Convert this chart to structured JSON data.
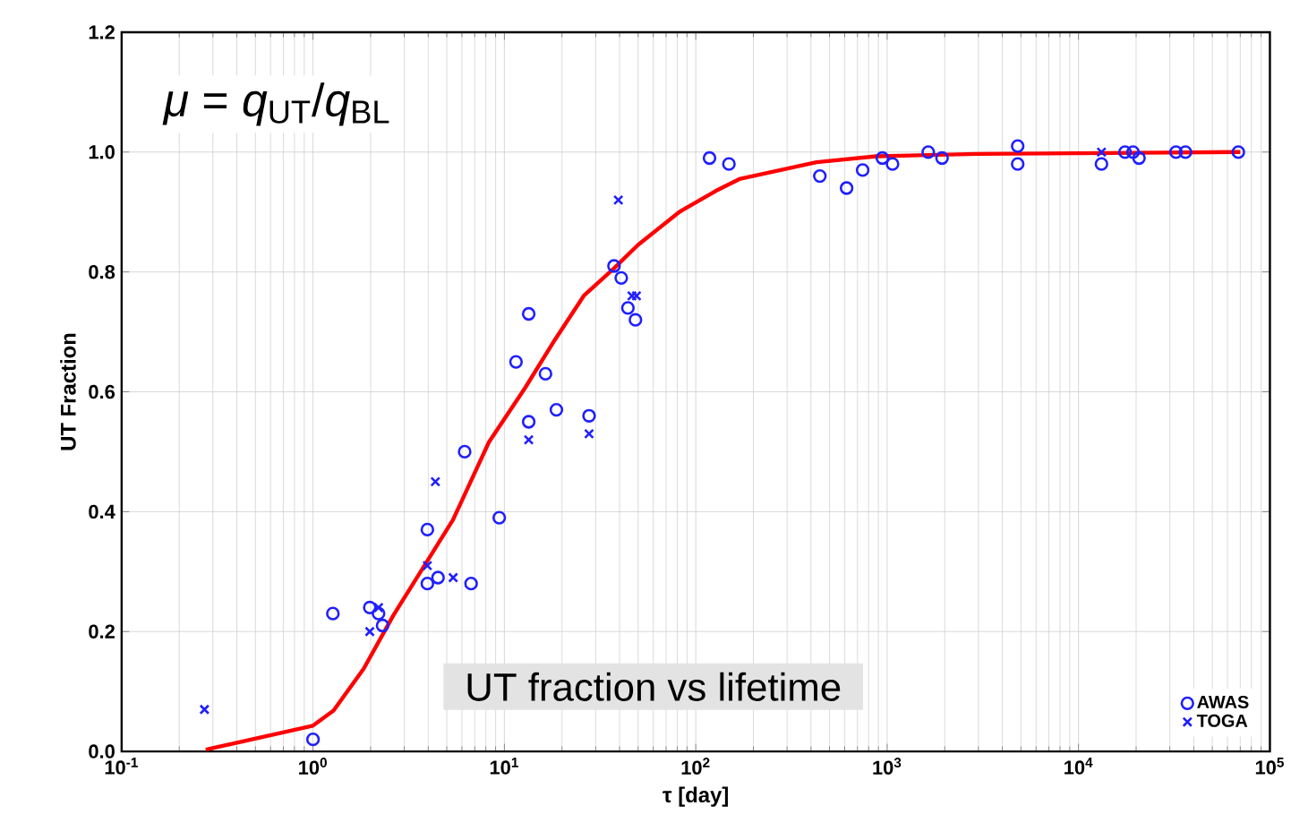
{
  "chart_data": {
    "type": "scatter",
    "xlabel": "τ [day]",
    "ylabel": "UT Fraction",
    "annotations": [
      "*μ* = *q*$_{UT}$/*q*$_{BL}$",
      "UT fraction vs lifetime"
    ],
    "log": "x",
    "grid": true,
    "legend": "bottom right",
    "xlim": [
      0.1,
      100000
    ],
    "ylim": [
      0,
      1.2
    ],
    "xticks": [
      {
        "value": 0.1,
        "label": "10$^{-1}$"
      },
      {
        "value": 1,
        "label": "10$^{0}$"
      },
      {
        "value": 10,
        "label": "10$^{1}$"
      },
      {
        "value": 100,
        "label": "10$^{2}$"
      },
      {
        "value": 1000,
        "label": "10$^{3}$"
      },
      {
        "value": 10000,
        "label": "10$^{4}$"
      },
      {
        "value": 100000,
        "label": "10$^{5}$"
      }
    ],
    "yticks": [
      {
        "value": 0,
        "label": "0.0"
      },
      {
        "value": 0.2,
        "label": "0.2"
      },
      {
        "value": 0.4,
        "label": "0.4"
      },
      {
        "value": 0.6,
        "label": "0.6"
      },
      {
        "value": 0.8,
        "label": "0.8"
      },
      {
        "value": 1,
        "label": "1.0"
      },
      {
        "value": 1.2,
        "label": "1.2"
      }
    ],
    "series": [
      {
        "type": "line",
        "color": "#ff0000",
        "marker": "none",
        "line_style": "solid",
        "x": [
          0.275,
          1.0,
          1.28,
          1.84,
          2.63,
          3.77,
          5.4,
          8.3,
          12.8,
          18.3,
          26.1,
          37.4,
          49.9,
          82,
          127,
          169,
          428,
          877,
          2970,
          70000
        ],
        "values": [
          0.003,
          0.043,
          0.068,
          0.138,
          0.227,
          0.307,
          0.387,
          0.516,
          0.606,
          0.686,
          0.761,
          0.806,
          0.845,
          0.9,
          0.935,
          0.955,
          0.983,
          0.993,
          0.997,
          1.0
        ]
      },
      {
        "name": "AWAS",
        "color": "#1f1fff",
        "marker": "circle",
        "x": [
          1.0,
          1.27,
          1.98,
          2.2,
          2.31,
          3.96,
          3.96,
          4.5,
          6.2,
          6.7,
          9.4,
          11.5,
          13.4,
          13.4,
          16.4,
          18.7,
          27.7,
          37.4,
          40.8,
          44.2,
          48.4,
          118,
          149,
          445,
          614,
          745,
          944,
          1067,
          1640,
          1936,
          4810,
          4810,
          13180,
          17500,
          19270,
          20700,
          32300,
          36200,
          68400
        ],
        "values": [
          0.02,
          0.23,
          0.24,
          0.23,
          0.21,
          0.37,
          0.28,
          0.29,
          0.5,
          0.28,
          0.39,
          0.65,
          0.73,
          0.55,
          0.63,
          0.57,
          0.56,
          0.81,
          0.79,
          0.74,
          0.72,
          0.99,
          0.98,
          0.96,
          0.94,
          0.97,
          0.99,
          0.98,
          1.0,
          0.99,
          1.01,
          0.98,
          0.98,
          1.0,
          1.0,
          0.99,
          1.0,
          1.0,
          1.0
        ]
      },
      {
        "name": "TOGA",
        "color": "#1f1fff",
        "marker": "cross",
        "x": [
          0.271,
          1.98,
          2.2,
          4.36,
          3.96,
          5.4,
          13.4,
          27.7,
          39.4,
          46.4,
          49,
          13180
        ],
        "values": [
          0.07,
          0.2,
          0.24,
          0.45,
          0.31,
          0.29,
          0.52,
          0.53,
          0.92,
          0.76,
          0.76,
          1.0
        ]
      }
    ]
  }
}
